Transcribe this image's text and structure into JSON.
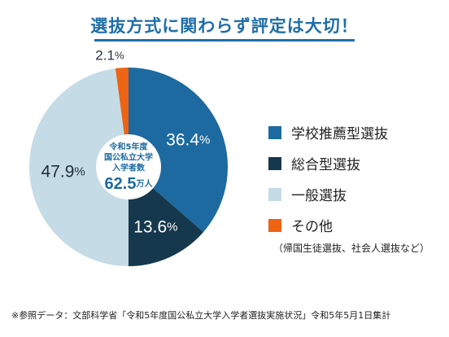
{
  "title": "選抜方式に関わらず評定は大切！",
  "chart_data": {
    "type": "pie",
    "categories": [
      "学校推薦型選抜",
      "総合型選抜",
      "一般選抜",
      "その他"
    ],
    "values": [
      36.4,
      13.6,
      47.9,
      2.1
    ],
    "value_labels": [
      "36.4",
      "13.6",
      "47.9",
      "2.1"
    ],
    "unit": "%",
    "colors": [
      "#1d6aa0",
      "#15384d",
      "#c5dbe6",
      "#ec6414"
    ],
    "label_colors": [
      "#ffffff",
      "#ffffff",
      "#1f2f3a",
      "#1f2f3a"
    ],
    "donut": true,
    "center": {
      "line1": "令和5年度",
      "line2": "国公私立大学",
      "line3": "入学者数",
      "value": "62.5",
      "unit": "万人"
    },
    "legend_position": "right",
    "legend_note": "（帰国生徒選抜、社会人選抜など）"
  },
  "footnote": "※参照データ：文部科学省「令和5年度国公私立大学入学者選抜実施状況」令和5年5月1日集計"
}
